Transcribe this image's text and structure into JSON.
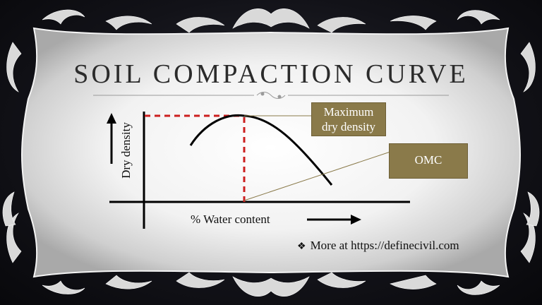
{
  "slide": {
    "title": "SOIL COMPACTION CURVE"
  },
  "diagram": {
    "x_axis_label": "% Water content",
    "y_axis_label": "Dry density",
    "annotations": {
      "max_dry_density": "Maximum dry density",
      "max_dry_density_line1": "Maximum",
      "max_dry_density_line2": "dry density",
      "omc": "OMC"
    },
    "colors": {
      "dashed_guide": "#cc1f1f",
      "annotation_box": "#8a7a4a",
      "curve": "#000000",
      "leader_line": "#8a7a4a"
    }
  },
  "footer": {
    "bullet_icon": "diamond-bullet-icon",
    "credit_text": "More at https://definecivil.com"
  }
}
